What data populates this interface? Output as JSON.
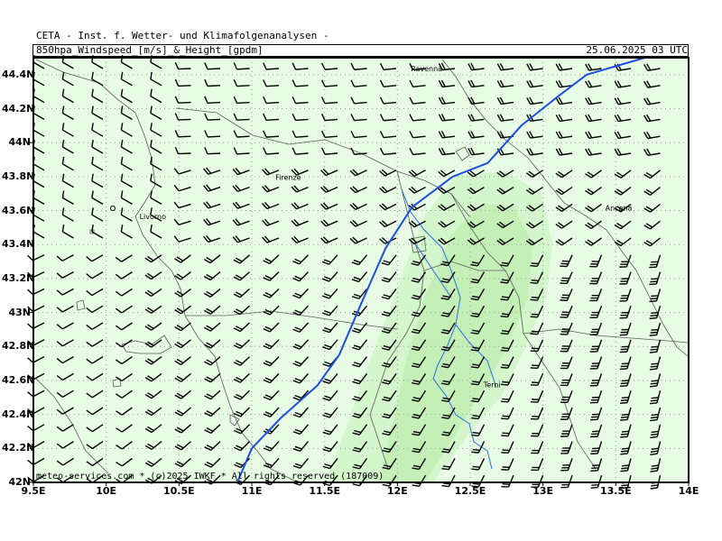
{
  "header": {
    "organization": "CETA - Inst. f. Wetter- und Klimafolgenanalysen -",
    "title": "850hpa_Windspeed_[m/s]_&_Height_[gpdm]",
    "datetime": "25.06.2025 03 UTC"
  },
  "credit": "meteo-services.com * (c)2025 IWKF * All rights reserved (187009)",
  "axes": {
    "x_ticks": [
      "9.5E",
      "10E",
      "10.5E",
      "11E",
      "11.5E",
      "12E",
      "12.5E",
      "13E",
      "13.5E",
      "14E"
    ],
    "y_ticks": [
      "44.4N",
      "44.2N",
      "44N",
      "43.8N",
      "43.6N",
      "43.4N",
      "43.2N",
      "43N",
      "42.8N",
      "42.6N",
      "42.4N",
      "42.2N",
      "42N"
    ],
    "lon_range": [
      9.5,
      14.0
    ],
    "lat_range": [
      42.0,
      44.5
    ]
  },
  "cities": [
    {
      "name": "Ravenna",
      "lon": 12.2,
      "lat": 44.42
    },
    {
      "name": "Firenze",
      "lon": 11.25,
      "lat": 43.78
    },
    {
      "name": "Livorno",
      "lon": 10.32,
      "lat": 43.55
    },
    {
      "name": "Ancona",
      "lon": 13.52,
      "lat": 43.6
    },
    {
      "name": "Terni",
      "lon": 12.65,
      "lat": 42.56
    }
  ],
  "colors": {
    "background_fill": "#e8fbe4",
    "wind_band_light": "#d4f6cc",
    "wind_band_strong": "#c4f0b8",
    "height_contour": "#1d4fe0",
    "rivers": "#2a6be6",
    "coast_borders": "#5a5a5a",
    "wind_barbs": "#000000"
  },
  "height_contour_lonlat": [
    [
      10.9,
      42.0
    ],
    [
      11.0,
      42.2
    ],
    [
      11.2,
      42.38
    ],
    [
      11.45,
      42.57
    ],
    [
      11.6,
      42.75
    ],
    [
      11.75,
      43.05
    ],
    [
      11.92,
      43.38
    ],
    [
      12.1,
      43.62
    ],
    [
      12.38,
      43.8
    ],
    [
      12.62,
      43.88
    ],
    [
      12.85,
      44.1
    ],
    [
      13.1,
      44.27
    ],
    [
      13.3,
      44.4
    ],
    [
      13.7,
      44.5
    ]
  ]
}
